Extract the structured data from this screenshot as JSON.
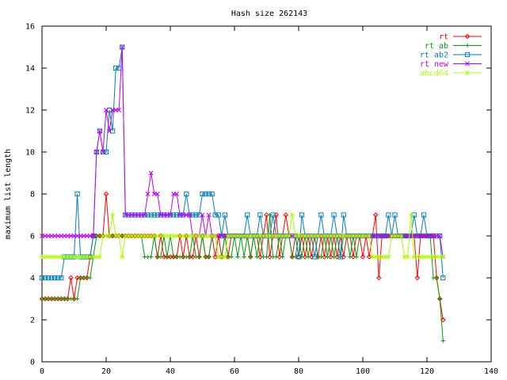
{
  "chart_data": {
    "type": "line",
    "title": "Hash size 262143",
    "xlabel": "",
    "ylabel": "maximum list length",
    "xlim": [
      0,
      140
    ],
    "ylim": [
      0,
      16
    ],
    "xticks": [
      0,
      20,
      40,
      60,
      80,
      100,
      120,
      140
    ],
    "yticks": [
      0,
      2,
      4,
      6,
      8,
      10,
      12,
      14,
      16
    ],
    "grid": false,
    "legend_position": "top-right",
    "series": [
      {
        "name": "rt",
        "color": "#ff0000",
        "marker": "diamond",
        "values": [
          3,
          3,
          3,
          3,
          3,
          3,
          3,
          3,
          3,
          4,
          3,
          4,
          4,
          4,
          4,
          5,
          6,
          6,
          6,
          6,
          8,
          6,
          6,
          6,
          6,
          6,
          6,
          6,
          6,
          6,
          6,
          6,
          6,
          6,
          6,
          6,
          5,
          6,
          5,
          5,
          5,
          5,
          5,
          6,
          5,
          6,
          5,
          5,
          6,
          5,
          6,
          5,
          5,
          6,
          5,
          6,
          5,
          6,
          5,
          6,
          6,
          6,
          6,
          6,
          6,
          5,
          6,
          6,
          5,
          6,
          7,
          5,
          6,
          7,
          5,
          6,
          7,
          6,
          5,
          6,
          5,
          6,
          5,
          6,
          5,
          6,
          5,
          6,
          5,
          6,
          5,
          6,
          5,
          6,
          5,
          6,
          6,
          5,
          6,
          6,
          5,
          6,
          5,
          6,
          7,
          4,
          6,
          6,
          6,
          6,
          6,
          6,
          6,
          6,
          6,
          6,
          6,
          4,
          6,
          6,
          6,
          6,
          6,
          4,
          3,
          2
        ]
      },
      {
        "name": "rt ab",
        "color": "#00a000",
        "marker": "plus",
        "values": [
          3,
          3,
          3,
          3,
          3,
          3,
          3,
          3,
          3,
          3,
          3,
          3,
          4,
          4,
          4,
          4,
          5,
          6,
          6,
          6,
          6,
          6,
          6,
          6,
          6,
          6,
          6,
          6,
          6,
          6,
          6,
          6,
          5,
          5,
          5,
          6,
          5,
          5,
          6,
          5,
          6,
          5,
          5,
          5,
          5,
          5,
          5,
          6,
          5,
          5,
          6,
          5,
          5,
          6,
          6,
          5,
          5,
          6,
          5,
          5,
          6,
          5,
          6,
          5,
          6,
          5,
          6,
          5,
          6,
          5,
          5,
          7,
          5,
          5,
          6,
          5,
          6,
          6,
          5,
          5,
          6,
          5,
          6,
          5,
          6,
          6,
          5,
          5,
          6,
          5,
          6,
          5,
          6,
          5,
          6,
          6,
          5,
          6,
          5,
          6,
          6,
          6,
          6,
          6,
          6,
          6,
          6,
          6,
          6,
          6,
          6,
          6,
          6,
          6,
          6,
          6,
          6,
          6,
          6,
          6,
          6,
          6,
          4,
          4,
          3,
          1
        ]
      },
      {
        "name": "rt ab2",
        "color": "#0080c0",
        "marker": "square",
        "values": [
          4,
          4,
          4,
          4,
          4,
          4,
          4,
          5,
          5,
          5,
          5,
          8,
          5,
          5,
          5,
          5,
          6,
          10,
          11,
          10,
          10,
          12,
          11,
          14,
          14,
          15,
          7,
          7,
          7,
          7,
          7,
          7,
          7,
          7,
          7,
          7,
          7,
          7,
          7,
          7,
          7,
          7,
          7,
          7,
          7,
          8,
          7,
          7,
          7,
          7,
          8,
          8,
          8,
          8,
          7,
          7,
          6,
          7,
          6,
          6,
          6,
          6,
          6,
          6,
          7,
          6,
          6,
          6,
          7,
          6,
          6,
          6,
          7,
          6,
          6,
          6,
          6,
          6,
          6,
          6,
          5,
          7,
          6,
          6,
          6,
          5,
          6,
          7,
          6,
          6,
          6,
          7,
          6,
          5,
          7,
          6,
          6,
          6,
          6,
          6,
          6,
          6,
          6,
          6,
          6,
          6,
          6,
          6,
          7,
          6,
          7,
          6,
          6,
          6,
          6,
          6,
          7,
          6,
          6,
          7,
          6,
          6,
          6,
          6,
          6,
          4
        ]
      },
      {
        "name": "rt new",
        "color": "#c000ff",
        "marker": "cross",
        "values": [
          6,
          6,
          6,
          6,
          6,
          6,
          6,
          6,
          6,
          6,
          6,
          6,
          6,
          6,
          6,
          6,
          6,
          10,
          11,
          10,
          12,
          11,
          12,
          12,
          12,
          15,
          7,
          7,
          7,
          7,
          7,
          7,
          7,
          8,
          9,
          8,
          8,
          7,
          7,
          7,
          7,
          8,
          8,
          7,
          7,
          7,
          7,
          6,
          6,
          6,
          7,
          6,
          7,
          6,
          6,
          6,
          6,
          6,
          6,
          6,
          6,
          6,
          6,
          6,
          6,
          6,
          6,
          6,
          6,
          6,
          6,
          6,
          6,
          6,
          6,
          6,
          6,
          6,
          6,
          6,
          6,
          6,
          6,
          6,
          6,
          6,
          6,
          6,
          6,
          6,
          6,
          6,
          6,
          6,
          6,
          6,
          6,
          6,
          6,
          6,
          6,
          6,
          6,
          6,
          6,
          6,
          6,
          6,
          6,
          6,
          6,
          6,
          6,
          6,
          6,
          6,
          6,
          6,
          6,
          6,
          6,
          6,
          6,
          6,
          6,
          5
        ]
      },
      {
        "name": "abcd64",
        "color": "#aaff00",
        "marker": "star",
        "values": [
          5,
          5,
          5,
          5,
          5,
          5,
          5,
          5,
          5,
          5,
          5,
          5,
          5,
          5,
          5,
          5,
          5,
          5,
          5,
          6,
          6,
          6,
          7,
          6,
          6,
          5,
          6,
          6,
          6,
          6,
          6,
          6,
          6,
          6,
          6,
          6,
          6,
          6,
          6,
          6,
          6,
          6,
          6,
          6,
          6,
          6,
          6,
          6,
          6,
          6,
          6,
          6,
          6,
          6,
          6,
          5,
          5,
          5,
          6,
          6,
          6,
          6,
          6,
          6,
          6,
          6,
          6,
          6,
          6,
          6,
          6,
          6,
          6,
          6,
          6,
          6,
          6,
          6,
          7,
          6,
          6,
          6,
          6,
          6,
          6,
          6,
          6,
          6,
          6,
          6,
          6,
          6,
          6,
          6,
          6,
          6,
          6,
          6,
          6,
          6,
          6,
          6,
          6,
          5,
          5,
          5,
          5,
          5,
          5,
          6,
          6,
          6,
          6,
          5,
          5,
          7,
          5,
          5,
          5,
          5,
          5,
          5,
          5,
          5,
          5,
          5
        ]
      }
    ]
  }
}
